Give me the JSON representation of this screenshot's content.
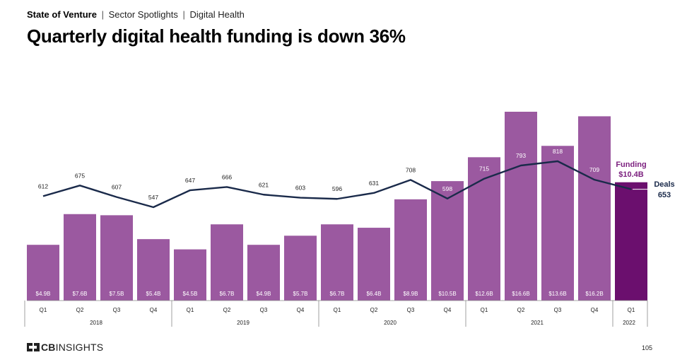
{
  "header": {
    "report": "State of Venture",
    "sep1": "|",
    "section": "Sector Spotlights",
    "sep2": "|",
    "sector": "Digital Health",
    "title": "Quarterly digital health funding is down 36%"
  },
  "footer": {
    "logo_text_bold": "CB",
    "logo_text": "INSIGHTS",
    "page_number": "105"
  },
  "colors": {
    "bar": "#9b59a0",
    "bar_highlight": "#6b0f6e",
    "line": "#1a2a4a",
    "highlight_label": "#7b1f7e",
    "axis": "#888888",
    "text": "#222222"
  },
  "chart_data": {
    "type": "bar+line",
    "title": "Quarterly digital health funding is down 36%",
    "categories": [
      "Q1",
      "Q2",
      "Q3",
      "Q4",
      "Q1",
      "Q2",
      "Q3",
      "Q4",
      "Q1",
      "Q2",
      "Q3",
      "Q4",
      "Q1",
      "Q2",
      "Q3",
      "Q4",
      "Q1"
    ],
    "years": [
      {
        "label": "2018",
        "count": 4
      },
      {
        "label": "2019",
        "count": 4
      },
      {
        "label": "2020",
        "count": 4
      },
      {
        "label": "2021",
        "count": 4
      },
      {
        "label": "2022",
        "count": 1
      }
    ],
    "series": [
      {
        "name": "Funding",
        "kind": "bar",
        "unit": "$B",
        "values": [
          4.9,
          7.6,
          7.5,
          5.4,
          4.5,
          6.7,
          4.9,
          5.7,
          6.7,
          6.4,
          8.9,
          10.5,
          12.6,
          16.6,
          13.6,
          16.2,
          10.4
        ],
        "labels": [
          "$4.9B",
          "$7.6B",
          "$7.5B",
          "$5.4B",
          "$4.5B",
          "$6.7B",
          "$4.9B",
          "$5.7B",
          "$6.7B",
          "$6.4B",
          "$8.9B",
          "$10.5B",
          "$12.6B",
          "$16.6B",
          "$13.6B",
          "$16.2B",
          ""
        ]
      },
      {
        "name": "Deals",
        "kind": "line",
        "values": [
          612,
          675,
          607,
          547,
          647,
          666,
          621,
          603,
          596,
          631,
          708,
          598,
          715,
          793,
          818,
          709,
          653
        ],
        "labels": [
          "612",
          "675",
          "607",
          "547",
          "647",
          "666",
          "621",
          "603",
          "596",
          "631",
          "708",
          "598",
          "715",
          "793",
          "818",
          "709",
          ""
        ]
      }
    ],
    "highlight": {
      "funding_label": "Funding",
      "funding_value": "$10.4B",
      "deals_label": "Deals",
      "deals_value": "653"
    },
    "funding_range": [
      0,
      16.6
    ],
    "deals_range": [
      547,
      818
    ]
  }
}
